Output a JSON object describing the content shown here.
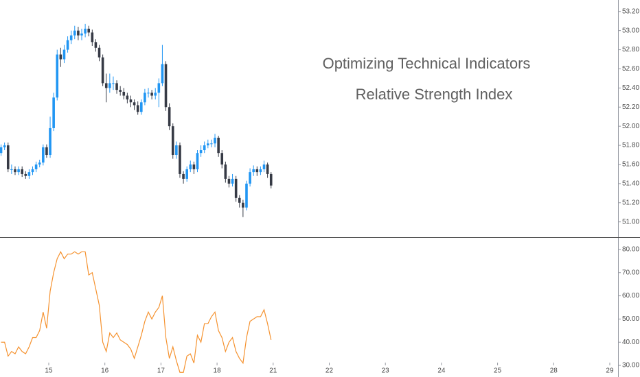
{
  "chart_data": {
    "type": "candlestick",
    "title": "Optimizing Technical Indicators",
    "subtitle": "Relative Strength Index",
    "x": [
      -0.85,
      -0.7875,
      -0.725,
      -0.6625,
      -0.6,
      -0.5375,
      -0.475,
      -0.4125,
      -0.35,
      -0.2875,
      -0.225,
      -0.1625,
      -0.1,
      -0.0375,
      0.025,
      0.0875,
      0.15,
      0.2125,
      0.275,
      0.3375,
      0.4,
      0.4625,
      0.525,
      0.5875,
      0.65,
      0.7125,
      0.775,
      0.8375,
      0.9,
      0.9625,
      1.025,
      1.0875,
      1.15,
      1.2125,
      1.275,
      1.3375,
      1.4,
      1.4625,
      1.525,
      1.5875,
      1.65,
      1.7125,
      1.775,
      1.8375,
      1.9,
      1.9625,
      2.025,
      2.0875,
      2.15,
      2.2125,
      2.275,
      2.3375,
      2.4,
      2.4625,
      2.525,
      2.5875,
      2.65,
      2.7125,
      2.775,
      2.8375,
      2.9,
      2.9625,
      3.025,
      3.0875,
      3.15,
      3.2125,
      3.275,
      3.3375,
      3.4,
      3.4625,
      3.525,
      3.5875,
      3.65,
      3.7125,
      3.775,
      3.8375,
      3.9,
      3.9625
    ],
    "open": [
      51.72,
      51.78,
      51.8,
      51.55,
      51.55,
      51.52,
      51.55,
      51.5,
      51.48,
      51.52,
      51.55,
      51.6,
      51.62,
      51.78,
      51.7,
      51.98,
      52.3,
      52.75,
      52.7,
      52.8,
      52.9,
      52.95,
      53.0,
      52.95,
      52.97,
      53.02,
      52.98,
      52.88,
      52.82,
      52.72,
      52.45,
      52.4,
      52.45,
      52.45,
      52.38,
      52.36,
      52.32,
      52.28,
      52.25,
      52.22,
      52.15,
      52.25,
      52.35,
      52.35,
      52.32,
      52.35,
      52.45,
      52.65,
      52.2,
      52.0,
      51.7,
      51.8,
      51.5,
      51.45,
      51.55,
      51.6,
      51.55,
      51.72,
      51.75,
      51.8,
      51.82,
      51.82,
      51.88,
      51.72,
      51.6,
      51.45,
      51.4,
      51.45,
      51.25,
      51.2,
      51.15,
      51.4,
      51.52,
      51.55,
      51.52,
      51.55,
      51.6,
      51.5
    ],
    "high": [
      51.81,
      51.83,
      51.83,
      51.6,
      51.58,
      51.58,
      51.58,
      51.53,
      51.55,
      51.58,
      51.63,
      51.65,
      51.81,
      51.81,
      52.1,
      52.35,
      52.8,
      52.82,
      52.85,
      52.94,
      53.0,
      53.05,
      53.04,
      53.02,
      53.07,
      53.05,
      53.01,
      52.91,
      52.85,
      52.75,
      52.55,
      52.55,
      52.52,
      52.48,
      52.42,
      52.4,
      52.35,
      52.32,
      52.28,
      52.26,
      52.28,
      52.39,
      52.4,
      52.38,
      52.4,
      52.5,
      52.85,
      52.68,
      52.24,
      52.03,
      51.84,
      51.83,
      51.53,
      51.58,
      51.64,
      51.63,
      51.75,
      51.8,
      51.84,
      51.86,
      51.86,
      51.92,
      51.9,
      51.75,
      51.63,
      51.48,
      51.5,
      51.48,
      51.28,
      51.23,
      51.43,
      51.56,
      51.59,
      51.58,
      51.58,
      51.64,
      51.62,
      51.52
    ],
    "low": [
      51.69,
      51.75,
      51.52,
      51.5,
      51.49,
      51.49,
      51.47,
      51.45,
      51.45,
      51.49,
      51.52,
      51.57,
      51.59,
      51.67,
      51.67,
      51.95,
      52.27,
      52.62,
      52.66,
      52.77,
      52.86,
      52.91,
      52.9,
      52.9,
      52.93,
      52.94,
      52.84,
      52.78,
      52.68,
      52.42,
      52.25,
      52.35,
      52.38,
      52.34,
      52.32,
      52.28,
      52.24,
      52.2,
      52.17,
      52.12,
      52.12,
      52.22,
      52.3,
      52.28,
      52.28,
      52.2,
      52.42,
      52.16,
      51.96,
      51.66,
      51.66,
      51.46,
      51.4,
      51.42,
      51.52,
      51.5,
      51.52,
      51.68,
      51.72,
      51.77,
      51.78,
      51.78,
      51.68,
      51.56,
      51.41,
      51.36,
      51.37,
      51.21,
      51.15,
      51.05,
      51.12,
      51.37,
      51.48,
      51.48,
      51.49,
      51.52,
      51.46,
      51.35
    ],
    "close": [
      51.78,
      51.8,
      51.55,
      51.55,
      51.52,
      51.55,
      51.5,
      51.48,
      51.52,
      51.55,
      51.6,
      51.62,
      51.78,
      51.7,
      51.98,
      52.3,
      52.75,
      52.7,
      52.8,
      52.9,
      52.95,
      53.0,
      52.95,
      52.97,
      53.02,
      52.98,
      52.88,
      52.82,
      52.72,
      52.45,
      52.4,
      52.45,
      52.45,
      52.38,
      52.36,
      52.32,
      52.28,
      52.25,
      52.22,
      52.15,
      52.25,
      52.35,
      52.35,
      52.32,
      52.35,
      52.45,
      52.65,
      52.2,
      52.0,
      51.7,
      51.8,
      51.5,
      51.45,
      51.55,
      51.6,
      51.55,
      51.72,
      51.75,
      51.8,
      51.82,
      51.82,
      51.88,
      51.72,
      51.6,
      51.45,
      51.4,
      51.45,
      51.25,
      51.2,
      51.15,
      51.4,
      51.52,
      51.55,
      51.52,
      51.55,
      51.6,
      51.5,
      51.38
    ],
    "up_color": "#2196f3",
    "down_color": "#363a45",
    "xlim": [
      -0.869,
      10.147
    ],
    "xticks": [
      {
        "value": 0,
        "label": "15"
      },
      {
        "value": 1,
        "label": "16"
      },
      {
        "value": 2,
        "label": "17"
      },
      {
        "value": 3,
        "label": "18"
      },
      {
        "value": 4,
        "label": "21"
      },
      {
        "value": 5,
        "label": "22"
      },
      {
        "value": 6,
        "label": "23"
      },
      {
        "value": 7,
        "label": "24"
      },
      {
        "value": 8,
        "label": "25"
      },
      {
        "value": 9,
        "label": "28"
      },
      {
        "value": 10,
        "label": "29"
      }
    ],
    "ylim": [
      50.84,
      53.32
    ],
    "yticks": [
      {
        "value": 51.0,
        "label": "51.00"
      },
      {
        "value": 51.2,
        "label": "51.20"
      },
      {
        "value": 51.4,
        "label": "51.40"
      },
      {
        "value": 51.6,
        "label": "51.60"
      },
      {
        "value": 51.8,
        "label": "51.80"
      },
      {
        "value": 52.0,
        "label": "52.00"
      },
      {
        "value": 52.2,
        "label": "52.20"
      },
      {
        "value": 52.4,
        "label": "52.40"
      },
      {
        "value": 52.6,
        "label": "52.60"
      },
      {
        "value": 52.8,
        "label": "52.80"
      },
      {
        "value": 53.0,
        "label": "53.00"
      },
      {
        "value": 53.2,
        "label": "53.20"
      }
    ],
    "indicator": {
      "type": "line",
      "color": "#f5922f",
      "values": [
        40,
        40,
        34,
        36,
        35,
        38,
        36,
        35,
        38,
        42,
        42,
        45,
        53,
        46,
        62,
        70,
        76,
        79,
        76,
        78,
        78,
        79,
        78,
        79,
        79,
        69,
        70,
        63,
        56,
        40,
        36,
        44,
        42,
        44,
        41,
        40,
        39,
        37,
        33,
        38,
        43,
        49,
        53,
        50,
        53,
        55,
        60,
        42,
        33,
        38,
        32,
        27,
        27,
        34,
        35,
        31,
        43,
        40,
        48,
        48,
        51,
        53,
        45,
        42,
        36,
        40,
        42,
        36,
        33,
        31,
        42,
        49,
        50,
        51,
        51,
        54,
        48,
        41
      ],
      "ylim": [
        25,
        85
      ],
      "yticks": [
        {
          "value": 30,
          "label": "30.00"
        },
        {
          "value": 40,
          "label": "40.00"
        },
        {
          "value": 50,
          "label": "50.00"
        },
        {
          "value": 60,
          "label": "60.00"
        },
        {
          "value": 70,
          "label": "70.00"
        },
        {
          "value": 80,
          "label": "80.00"
        }
      ]
    }
  }
}
